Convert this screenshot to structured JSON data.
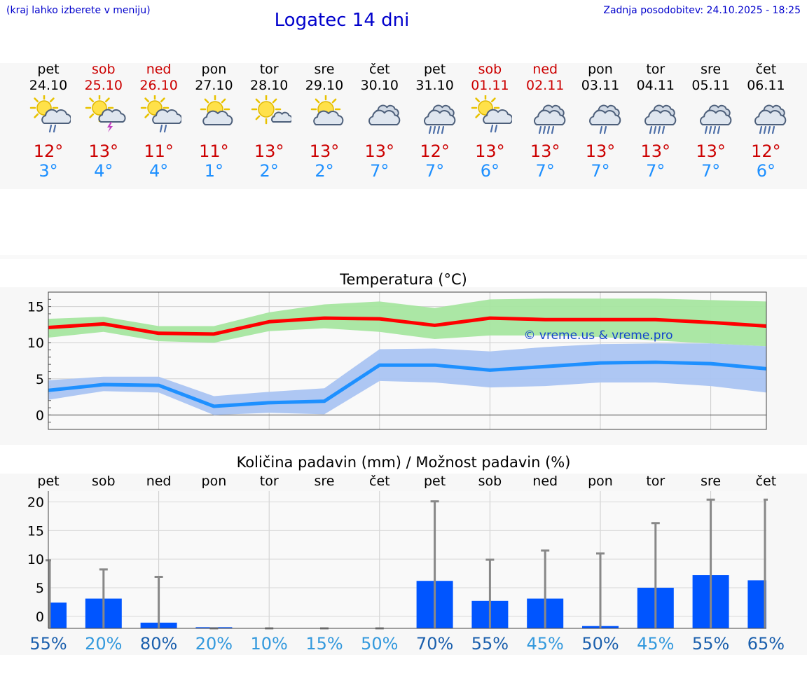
{
  "header": {
    "hint": "(kraj lahko izberete v meniju)",
    "title": "Logatec 14 dni",
    "updated": "Zadnja posodobitev: 24.10.2025 - 18:25"
  },
  "forecast": [
    {
      "day": "pet",
      "date": "24.10",
      "weekend": false,
      "icon": "sun-cloud-rain-icon",
      "tmax": "12°",
      "tmin": "3°"
    },
    {
      "day": "sob",
      "date": "25.10",
      "weekend": true,
      "icon": "sun-cloud-thunder-icon",
      "tmax": "13°",
      "tmin": "4°"
    },
    {
      "day": "ned",
      "date": "26.10",
      "weekend": true,
      "icon": "sun-cloud-rain-icon",
      "tmax": "11°",
      "tmin": "4°"
    },
    {
      "day": "pon",
      "date": "27.10",
      "weekend": false,
      "icon": "sun-cloud-icon",
      "tmax": "11°",
      "tmin": "1°"
    },
    {
      "day": "tor",
      "date": "28.10",
      "weekend": false,
      "icon": "sun-small-cloud-icon",
      "tmax": "13°",
      "tmin": "2°"
    },
    {
      "day": "sre",
      "date": "29.10",
      "weekend": false,
      "icon": "sun-cloud-icon",
      "tmax": "13°",
      "tmin": "2°"
    },
    {
      "day": "čet",
      "date": "30.10",
      "weekend": false,
      "icon": "cloudy-icon",
      "tmax": "13°",
      "tmin": "7°"
    },
    {
      "day": "pet",
      "date": "31.10",
      "weekend": false,
      "icon": "cloud-heavy-rain-icon",
      "tmax": "12°",
      "tmin": "7°"
    },
    {
      "day": "sob",
      "date": "01.11",
      "weekend": true,
      "icon": "sun-cloud-rain-icon",
      "tmax": "13°",
      "tmin": "6°"
    },
    {
      "day": "ned",
      "date": "02.11",
      "weekend": true,
      "icon": "cloud-heavy-rain-icon",
      "tmax": "13°",
      "tmin": "7°"
    },
    {
      "day": "pon",
      "date": "03.11",
      "weekend": false,
      "icon": "cloud-rain-icon",
      "tmax": "13°",
      "tmin": "7°"
    },
    {
      "day": "tor",
      "date": "04.11",
      "weekend": false,
      "icon": "cloud-heavy-rain-icon",
      "tmax": "13°",
      "tmin": "7°"
    },
    {
      "day": "sre",
      "date": "05.11",
      "weekend": false,
      "icon": "cloud-heavy-rain-icon",
      "tmax": "13°",
      "tmin": "7°"
    },
    {
      "day": "čet",
      "date": "06.11",
      "weekend": false,
      "icon": "cloud-heavy-rain-icon",
      "tmax": "12°",
      "tmin": "6°"
    }
  ],
  "colors": {
    "title": "#0000cc",
    "weekend": "#cc0000",
    "tmax_line": "#ff0000",
    "tmin_line": "#1e90ff",
    "tmax_band": "#a6e6a0",
    "tmin_band": "#aac4f2",
    "precip_bar": "#0055ff",
    "error_bar": "#888888"
  },
  "chart_data": [
    {
      "type": "line",
      "title": "Temperatura (°C)",
      "ylim": [
        -2,
        17
      ],
      "yticks": [
        0,
        5,
        10,
        15
      ],
      "x": [
        0,
        1,
        2,
        3,
        4,
        5,
        6,
        7,
        8,
        9,
        10,
        11,
        12,
        13
      ],
      "watermark": "© vreme.us & vreme.pro",
      "series": [
        {
          "name": "max",
          "values": [
            12.1,
            12.6,
            11.3,
            11.2,
            12.9,
            13.4,
            13.3,
            12.4,
            13.4,
            13.2,
            13.2,
            13.2,
            12.8,
            12.3
          ],
          "lower": [
            10.7,
            11.5,
            10.2,
            10.0,
            11.6,
            12.0,
            11.5,
            10.5,
            11.0,
            11.0,
            10.8,
            10.3,
            9.9,
            9.5
          ],
          "upper": [
            13.3,
            13.6,
            12.3,
            12.3,
            14.2,
            15.3,
            15.7,
            14.8,
            16.0,
            16.1,
            16.1,
            16.1,
            15.9,
            15.7
          ]
        },
        {
          "name": "min",
          "values": [
            3.4,
            4.2,
            4.1,
            1.2,
            1.7,
            1.9,
            6.9,
            6.9,
            6.2,
            6.7,
            7.2,
            7.3,
            7.1,
            6.4
          ],
          "lower": [
            2.1,
            3.3,
            3.1,
            0.0,
            0.3,
            0.1,
            4.7,
            4.5,
            3.8,
            4.0,
            4.5,
            4.5,
            4.0,
            3.1
          ],
          "upper": [
            4.8,
            5.3,
            5.3,
            2.6,
            3.2,
            3.7,
            9.1,
            9.2,
            8.8,
            9.4,
            9.8,
            9.9,
            9.9,
            9.5
          ]
        }
      ]
    },
    {
      "type": "bar",
      "title": "Količina padavin (mm) / Možnost padavin (%)",
      "categories": [
        "pet",
        "sob",
        "ned",
        "pon",
        "tor",
        "sre",
        "čet",
        "pet",
        "sob",
        "ned",
        "pon",
        "tor",
        "sre",
        "čet"
      ],
      "ylim": [
        -1,
        23
      ],
      "yticks": [
        0,
        5,
        10,
        15,
        20
      ],
      "values": [
        3.5,
        4.2,
        0.0,
        -0.8,
        -1.0,
        -1.0,
        -1.0,
        7.3,
        3.8,
        4.2,
        -0.6,
        6.1,
        8.3,
        7.4
      ],
      "error_upper": [
        10.9,
        9.3,
        8.0,
        -1.0,
        -1.0,
        -1.0,
        -1.0,
        21.2,
        11.0,
        12.6,
        12.1,
        17.4,
        21.5,
        21.5
      ],
      "probability": [
        "55%",
        "20%",
        "80%",
        "20%",
        "10%",
        "15%",
        "50%",
        "70%",
        "55%",
        "45%",
        "50%",
        "45%",
        "55%",
        "65%"
      ],
      "probability_colors": [
        "#1a5fad",
        "#3399dd",
        "#1a5fad",
        "#3399dd",
        "#3399dd",
        "#3399dd",
        "#3399dd",
        "#1a5fad",
        "#1a5fad",
        "#3399dd",
        "#1a5fad",
        "#3399dd",
        "#1a5fad",
        "#1a5fad"
      ]
    }
  ]
}
